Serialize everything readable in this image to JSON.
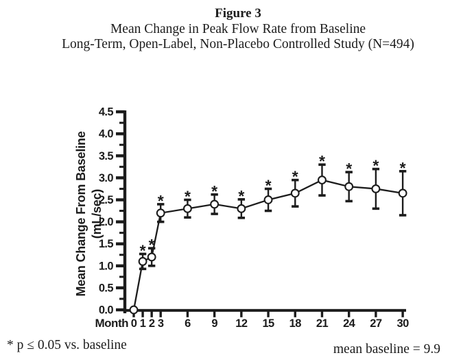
{
  "page": {
    "background": "#ffffff",
    "ink": "#1c1c1c"
  },
  "title": {
    "figure_label": "Figure 3",
    "line1": "Mean Change in Peak Flow Rate from Baseline",
    "line2": "Long-Term, Open-Label, Non-Placebo Controlled Study (N=494)"
  },
  "footer": {
    "left": "* p ≤ 0.05 vs. baseline",
    "right": "mean baseline = 9.9"
  },
  "chart_data": {
    "type": "line",
    "title": "Mean Change in Peak Flow Rate from Baseline",
    "xlabel": "Month",
    "ylabel_lines": [
      "Mean Change From Baseline",
      "(mL/sec)"
    ],
    "x": [
      0,
      1,
      2,
      3,
      6,
      9,
      12,
      15,
      18,
      21,
      24,
      27,
      30
    ],
    "series": [
      {
        "name": "Mean change in peak flow rate (mL/sec)",
        "values": [
          0.0,
          1.1,
          1.2,
          2.2,
          2.3,
          2.4,
          2.3,
          2.5,
          2.65,
          2.95,
          2.8,
          2.75,
          2.65
        ],
        "error": [
          0,
          0.17,
          0.2,
          0.2,
          0.2,
          0.22,
          0.21,
          0.25,
          0.3,
          0.35,
          0.33,
          0.45,
          0.5
        ],
        "significant": [
          false,
          true,
          true,
          true,
          true,
          true,
          true,
          true,
          true,
          true,
          true,
          true,
          true
        ]
      }
    ],
    "significance_marker": "*",
    "ylim": [
      0,
      4.5
    ],
    "ytick_step": 0.5,
    "ytick_minor_step": 0.25,
    "ytick_decimals": 1,
    "grid": false,
    "legend": "none",
    "marker": "open-circle",
    "marker_fill": "#ffffff",
    "line_color": "#1c1c1c"
  }
}
